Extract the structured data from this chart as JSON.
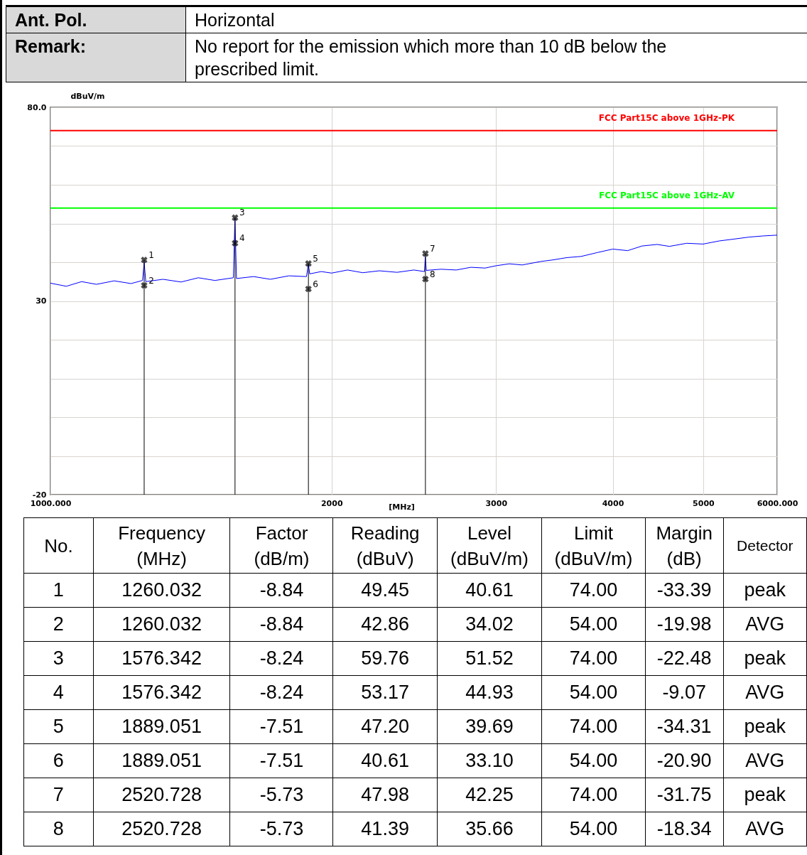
{
  "chart_data": [
    {
      "type": "other",
      "annotations": [
        "Ant. Pol.",
        "Horizontal",
        "Remark:",
        "No report for the emission which more than 10 dB below the prescribed limit."
      ]
    },
    {
      "type": "line",
      "ylabel": "dBuV/m",
      "xlabel": "[MHz]",
      "log": "x",
      "grid": true,
      "xlim": [
        1000,
        6000
      ],
      "xticks": [
        {
          "value": 1000,
          "label": "1000.000"
        },
        2000,
        3000,
        4000,
        5000,
        {
          "value": 6000,
          "label": "6000.000"
        }
      ],
      "ylim": [
        -20,
        80
      ],
      "yticks": [
        {
          "value": -20,
          "label": "-20"
        },
        {
          "value": -10,
          "label": null
        },
        {
          "value": 0,
          "label": null
        },
        {
          "value": 10,
          "label": null
        },
        {
          "value": 20,
          "label": null
        },
        30,
        {
          "value": 40,
          "label": null
        },
        {
          "value": 50,
          "label": null
        },
        {
          "value": 60,
          "label": null
        },
        {
          "value": 70,
          "label": null
        },
        {
          "value": 80,
          "label": "80.0"
        }
      ],
      "series": [
        {
          "type": "line",
          "color": "#0000ff",
          "x": [
            1000,
            1040,
            1080,
            1120,
            1170,
            1220,
            1255,
            1260,
            1265,
            1320,
            1380,
            1440,
            1500,
            1570,
            1576,
            1582,
            1650,
            1720,
            1800,
            1880,
            1889,
            1895,
            1950,
            2000,
            2080,
            2160,
            2250,
            2350,
            2450,
            2515,
            2520,
            2526,
            2620,
            2720,
            2820,
            2920,
            3000,
            3100,
            3200,
            3350,
            3450,
            3573,
            3700,
            3850,
            4000,
            4150,
            4300,
            4463,
            4600,
            4800,
            5000,
            5200,
            5400,
            5600,
            5800,
            6000
          ],
          "values": [
            34.6,
            33.8,
            35.0,
            34.3,
            35.2,
            34.5,
            35.3,
            40.0,
            35.0,
            35.6,
            34.9,
            36.0,
            35.3,
            36.0,
            51.5,
            35.8,
            36.3,
            35.6,
            36.5,
            36.3,
            39.5,
            37.0,
            37.6,
            37.2,
            38.0,
            37.3,
            37.8,
            37.4,
            38.0,
            37.6,
            41.5,
            37.9,
            38.2,
            38.0,
            38.7,
            38.5,
            39.1,
            39.6,
            39.3,
            40.2,
            40.6,
            41.2,
            41.5,
            42.5,
            43.4,
            43.0,
            44.2,
            44.6,
            44.1,
            44.9,
            44.7,
            45.5,
            46.0,
            46.5,
            46.8,
            47.0
          ]
        },
        {
          "type": "lollipop",
          "color": "#000000",
          "marker": "cross",
          "x": [
            1260.032,
            1576.342,
            1889.051,
            2520.728
          ],
          "values": [
            40.61,
            51.52,
            39.69,
            42.25
          ]
        },
        {
          "type": "scatter",
          "color": "#000000",
          "marker": "cross",
          "x": [
            1260.032,
            1576.342,
            1889.051,
            2520.728
          ],
          "values": [
            34.02,
            44.93,
            33.1,
            35.66
          ]
        }
      ],
      "ref_lines": [
        {
          "axis": "y",
          "value": 74,
          "label": "FCC Part15C above 1GHz-PK",
          "color": "#ff0000"
        },
        {
          "axis": "y",
          "value": 54,
          "label": "FCC Part15C above 1GHz-AV",
          "color": "#00ff00"
        }
      ],
      "annotations": [
        {
          "text": "1",
          "x": 1260.032,
          "y": 40.61
        },
        {
          "text": "2",
          "x": 1260.032,
          "y": 34.02
        },
        {
          "text": "3",
          "x": 1576.342,
          "y": 51.52
        },
        {
          "text": "4",
          "x": 1576.342,
          "y": 44.93
        },
        {
          "text": "5",
          "x": 1889.051,
          "y": 39.69
        },
        {
          "text": "6",
          "x": 1889.051,
          "y": 33.1
        },
        {
          "text": "7",
          "x": 2520.728,
          "y": 42.25
        },
        {
          "text": "8",
          "x": 2520.728,
          "y": 35.66
        },
        "No.",
        "Frequency (MHz)",
        "Factor (dB/m)",
        "Reading (dBuV)",
        "Level (dBuV/m)",
        "Limit (dBuV/m)",
        "Margin (dB)",
        "Detector",
        "1",
        "1260.032",
        "-8.84",
        "49.45",
        "40.61",
        "74.00",
        "-33.39",
        "peak",
        "2",
        "1260.032",
        "-8.84",
        "42.86",
        "34.02",
        "54.00",
        "-19.98",
        "AVG",
        "3",
        "1576.342",
        "-8.24",
        "59.76",
        "51.52",
        "74.00",
        "-22.48",
        "peak",
        "4",
        "1576.342",
        "-8.24",
        "53.17",
        "44.93",
        "54.00",
        "-9.07",
        "AVG",
        "5",
        "1889.051",
        "-7.51",
        "47.20",
        "39.69",
        "74.00",
        "-34.31",
        "peak",
        "6",
        "1889.051",
        "-7.51",
        "40.61",
        "33.10",
        "54.00",
        "-20.90",
        "AVG",
        "7",
        "2520.728",
        "-5.73",
        "47.98",
        "42.25",
        "74.00",
        "-31.75",
        "peak",
        "8",
        "2520.728",
        "-5.73",
        "41.39",
        "35.66",
        "54.00",
        "-18.34",
        "AVG"
      ]
    }
  ]
}
